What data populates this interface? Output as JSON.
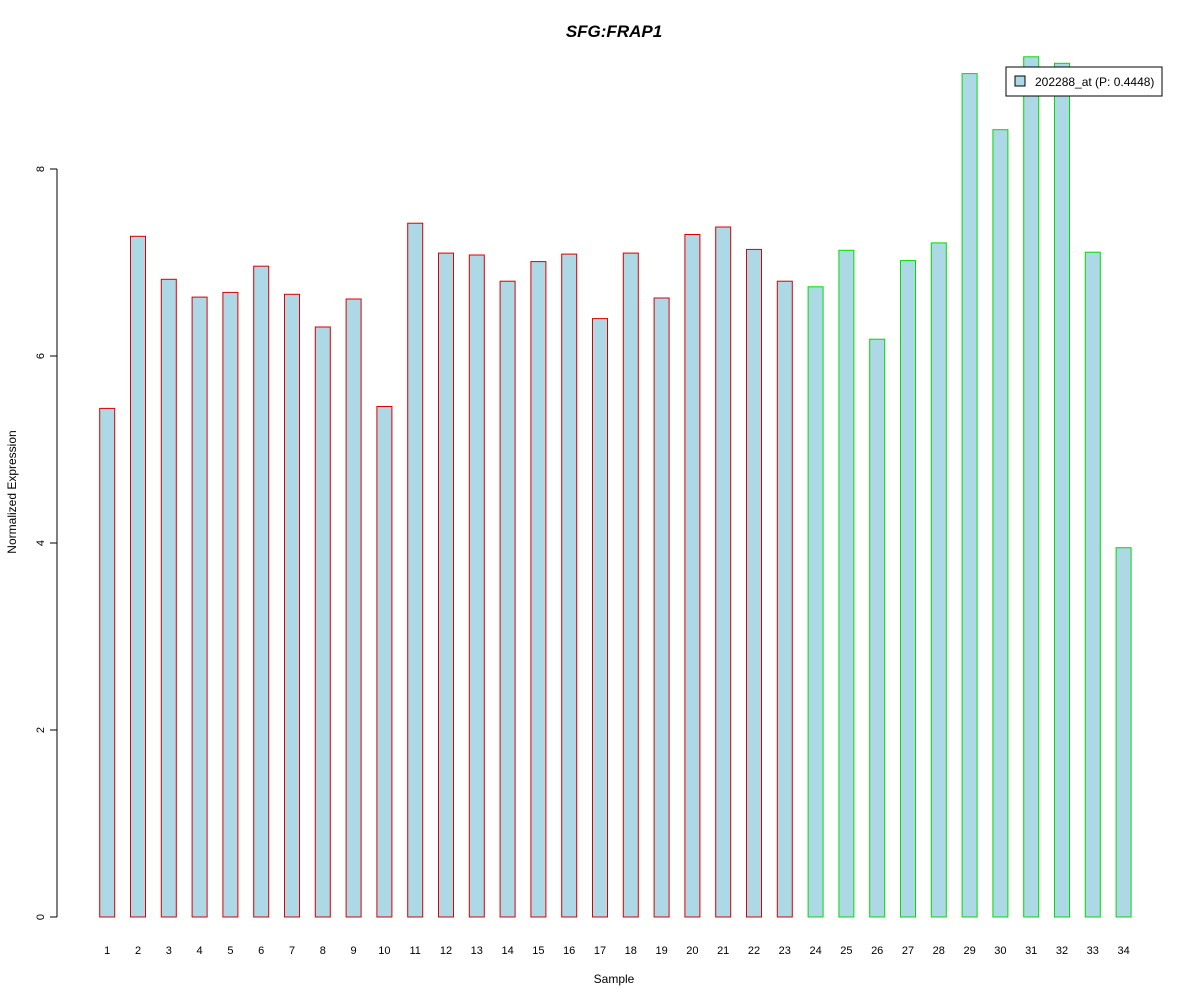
{
  "chart_data": {
    "type": "bar",
    "title": "SFG:FRAP1",
    "xlabel": "Sample",
    "ylabel": "Normalized Expression",
    "categories": [
      "1",
      "2",
      "3",
      "4",
      "5",
      "6",
      "7",
      "8",
      "9",
      "10",
      "11",
      "12",
      "13",
      "14",
      "15",
      "16",
      "17",
      "18",
      "19",
      "20",
      "21",
      "22",
      "23",
      "24",
      "25",
      "26",
      "27",
      "28",
      "29",
      "30",
      "31",
      "32",
      "33",
      "34"
    ],
    "series": [
      {
        "name": "202288_at (P: 0.4448)",
        "values": [
          5.44,
          7.28,
          6.82,
          6.63,
          6.68,
          6.96,
          6.66,
          6.31,
          6.61,
          5.46,
          7.42,
          7.1,
          7.08,
          6.8,
          7.01,
          7.09,
          6.4,
          7.1,
          6.62,
          7.3,
          7.38,
          7.14,
          6.8,
          6.74,
          7.13,
          6.18,
          7.02,
          7.21,
          9.02,
          8.42,
          9.2,
          9.13,
          7.11,
          3.95
        ]
      }
    ],
    "group_border_colors": [
      "#dd0000",
      "#dd0000",
      "#dd0000",
      "#dd0000",
      "#dd0000",
      "#dd0000",
      "#dd0000",
      "#dd0000",
      "#dd0000",
      "#dd0000",
      "#dd0000",
      "#dd0000",
      "#dd0000",
      "#dd0000",
      "#dd0000",
      "#dd0000",
      "#dd0000",
      "#dd0000",
      "#dd0000",
      "#dd0000",
      "#dd0000",
      "#dd0000",
      "#dd0000",
      "#00dd00",
      "#00dd00",
      "#00dd00",
      "#00dd00",
      "#00dd00",
      "#00dd00",
      "#00dd00",
      "#00dd00",
      "#00dd00",
      "#00dd00",
      "#00dd00"
    ],
    "yticks": [
      "0",
      "2",
      "4",
      "6",
      "8"
    ],
    "ylim": [
      0,
      9.2
    ],
    "bar_fill": "#add8e6",
    "title_color": "#0000cc",
    "grid": false,
    "legend_position": "top-right"
  }
}
